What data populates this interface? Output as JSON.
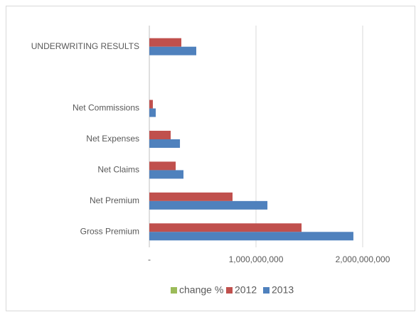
{
  "chart_data": {
    "type": "hbar",
    "categories": [
      "UNDERWRITING RESULTS",
      null,
      "Net Commissions",
      "Net Expenses",
      "Net Claims",
      "Net Premium",
      "Gross Premium"
    ],
    "series": [
      {
        "name": "change %",
        "color": "#9bbb59",
        "values": [
          0,
          null,
          0,
          0,
          0,
          0,
          0
        ]
      },
      {
        "name": "2012",
        "color": "#c0504d",
        "values": [
          300000000,
          null,
          33000000,
          200000000,
          247000000,
          780000000,
          1427000000
        ]
      },
      {
        "name": "2013",
        "color": "#4f81bd",
        "values": [
          440000000,
          null,
          60000000,
          287000000,
          320000000,
          1107000000,
          1913000000
        ]
      }
    ],
    "xlim": [
      0,
      2000000000
    ],
    "xticks": [
      {
        "value": 0,
        "label": "-"
      },
      {
        "value": 1000000000,
        "label": "1,000,000,000"
      },
      {
        "value": 2000000000,
        "label": "2,000,000,000"
      }
    ],
    "grid": true,
    "legend": "bottom"
  }
}
